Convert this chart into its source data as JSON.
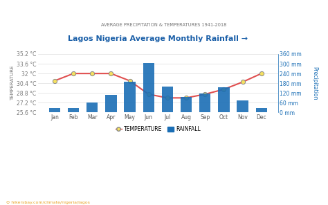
{
  "months": [
    "Jan",
    "Feb",
    "Mar",
    "Apr",
    "May",
    "Jun",
    "Jul",
    "Aug",
    "Sep",
    "Oct",
    "Nov",
    "Dec"
  ],
  "rainfall_mm": [
    28,
    28,
    60,
    108,
    188,
    305,
    158,
    95,
    115,
    155,
    75,
    28
  ],
  "temperature_c": [
    30.8,
    32.0,
    32.0,
    32.0,
    30.8,
    28.6,
    28.0,
    28.0,
    28.6,
    29.4,
    30.6,
    32.0
  ],
  "title": "Lagos Nigeria Average Monthly Rainfall →",
  "subtitle": "AVERAGE PRECIPITATION & TEMPERATURES 1941-2018",
  "ylabel_left": "TEMPERATURE",
  "ylabel_right": "Precipitation",
  "temp_ylim": [
    25.6,
    35.2
  ],
  "rain_ylim": [
    0,
    360
  ],
  "temp_ticks": [
    25.6,
    27.2,
    28.8,
    30.4,
    32.0,
    33.6,
    35.2
  ],
  "rain_ticks": [
    0,
    60,
    120,
    180,
    240,
    300,
    360
  ],
  "temp_tick_labels": [
    "25.6 °C",
    "27.2 °C",
    "28.8 °C",
    "30.4 °C",
    "32 °C",
    "33.6 °C",
    "35.2 °C"
  ],
  "rain_tick_labels": [
    "0 mm",
    "60 mm",
    "120 mm",
    "180 mm",
    "240 mm",
    "300 mm",
    "360 mm"
  ],
  "bar_color": "#1a6eb5",
  "line_color": "#e05050",
  "marker_face": "#f5e060",
  "marker_edge": "#888888",
  "bg_color": "#ffffff",
  "grid_color": "#dddddd",
  "title_color": "#1a5fa8",
  "subtitle_color": "#777777",
  "left_tick_color": "#777777",
  "right_tick_color": "#1a6eb5",
  "watermark": "hikersbay.com/climate/nigeria/lagos",
  "watermark_color": "#e8a020",
  "legend_temp": "TEMPERATURE",
  "legend_rain": "RAINFALL"
}
